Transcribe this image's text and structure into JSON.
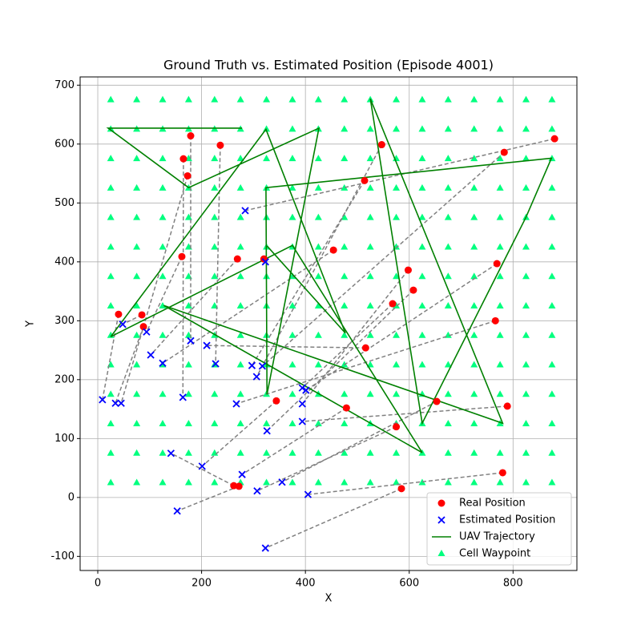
{
  "chart_data": {
    "type": "scatter",
    "title": "Ground Truth vs. Estimated Position (Episode 4001)",
    "x_label": "X",
    "y_label": "Y",
    "xlim": [
      -34,
      923
    ],
    "ylim": [
      -124,
      714
    ],
    "xticks": [
      0,
      200,
      400,
      600,
      800
    ],
    "yticks": [
      -100,
      0,
      100,
      200,
      300,
      400,
      500,
      600,
      700
    ],
    "grid": true,
    "legend": "lower right",
    "pair_lines": {
      "color": "gray",
      "style": "dashed"
    },
    "series": [
      {
        "name": "Real Position",
        "color": "red",
        "marker": "circle",
        "x": [
          179,
          236,
          165,
          173,
          40,
          85,
          88,
          162,
          269,
          320,
          454,
          547,
          514,
          880,
          783,
          769,
          598,
          608,
          568,
          766,
          516,
          653,
          789,
          344,
          479,
          575,
          262,
          272,
          585,
          780
        ],
        "y": [
          614,
          598,
          575,
          546,
          311,
          310,
          290,
          409,
          405,
          405,
          420,
          599,
          538,
          609,
          586,
          397,
          386,
          352,
          329,
          300,
          254,
          163,
          155,
          164,
          152,
          120,
          20,
          19,
          15,
          42
        ]
      },
      {
        "name": "Estimated Position",
        "color": "blue",
        "marker": "x",
        "x": [
          179,
          227,
          164,
          45,
          9,
          48,
          34,
          94,
          102,
          323,
          125,
          306,
          297,
          284,
          317,
          401,
          394,
          326,
          394,
          267,
          210,
          355,
          394,
          201,
          278,
          307,
          141,
          153,
          323,
          405
        ],
        "y": [
          266,
          227,
          170,
          160,
          166,
          294,
          160,
          281,
          242,
          400,
          228,
          205,
          224,
          487,
          223,
          182,
          159,
          113,
          186,
          159,
          258,
          26,
          129,
          53,
          39,
          11,
          75,
          -23,
          -86,
          5
        ]
      },
      {
        "name": "UAV Trajectory",
        "color": "green",
        "marker": "line",
        "x": [
          278,
          20,
          175,
          426,
          326,
          324,
          874,
          825,
          625,
          525,
          780,
          127,
          625,
          375,
          25,
          324,
          477,
          326
        ],
        "y": [
          627,
          627,
          526,
          627,
          175,
          526,
          576,
          476,
          126,
          677,
          126,
          326,
          76,
          428,
          273,
          625,
          279,
          427
        ]
      },
      {
        "name": "Cell Waypoint",
        "color": "#00ff7f",
        "marker": "triangle",
        "grid_x": [
          25,
          75,
          125,
          175,
          225,
          275,
          325,
          375,
          425,
          475,
          525,
          575,
          625,
          675,
          725,
          775,
          825,
          875
        ],
        "grid_y": [
          25,
          75,
          125,
          175,
          225,
          275,
          325,
          375,
          425,
          475,
          525,
          575,
          625,
          675
        ]
      }
    ]
  }
}
